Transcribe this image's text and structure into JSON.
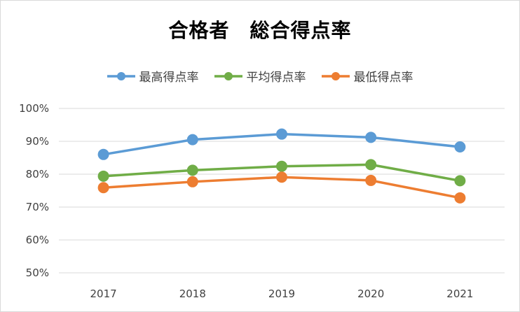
{
  "chart_data": {
    "type": "line",
    "title": "合格者　総合得点率",
    "xlabel": "",
    "ylabel": "",
    "categories": [
      "2017",
      "2018",
      "2019",
      "2020",
      "2021"
    ],
    "ylim": [
      0.5,
      1.0
    ],
    "yticks": [
      "50%",
      "60%",
      "70%",
      "80%",
      "90%",
      "100%"
    ],
    "ytick_values": [
      0.5,
      0.6,
      0.7,
      0.8,
      0.9,
      1.0
    ],
    "grid": true,
    "legend_position": "top",
    "series": [
      {
        "name": "最高得点率",
        "color": "#5b9bd5",
        "values": [
          0.86,
          0.905,
          0.922,
          0.912,
          0.883
        ]
      },
      {
        "name": "平均得点率",
        "color": "#70ad47",
        "values": [
          0.794,
          0.812,
          0.824,
          0.829,
          0.78
        ]
      },
      {
        "name": "最低得点率",
        "color": "#ed7d31",
        "values": [
          0.759,
          0.777,
          0.791,
          0.781,
          0.728
        ]
      }
    ]
  }
}
